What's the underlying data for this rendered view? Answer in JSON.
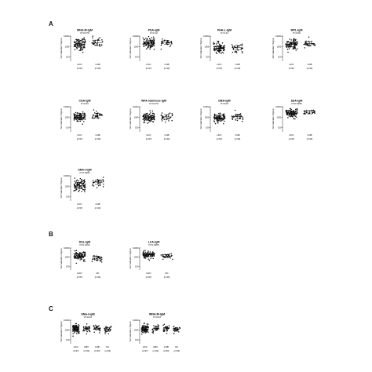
{
  "sections": [
    {
      "letter": "A"
    },
    {
      "letter": "B"
    },
    {
      "letter": "C"
    }
  ],
  "chart_data": [
    {
      "type": "scatter",
      "section": "A",
      "title": "MNA-M-IgM",
      "pvalue": "P=0.079",
      "ylabel": "Normalization Signal",
      "yscale": "log",
      "yticks": [
        100,
        1000,
        10000
      ],
      "ytick_labels": [
        "100",
        "1000",
        "10000"
      ],
      "groups": [
        {
          "name": "HCC",
          "n": "(n=97)",
          "median": 1800,
          "spread": 0.55,
          "count": 97
        },
        {
          "name": "CHB",
          "n": "(n=30)",
          "median": 2300,
          "spread": 0.45,
          "count": 30
        }
      ]
    },
    {
      "type": "scatter",
      "section": "A",
      "title": "PSA-IgM",
      "pvalue": "P=0.12",
      "ylabel": "Normalization Signal",
      "yscale": "log",
      "yticks": [
        100,
        1000,
        10000
      ],
      "ytick_labels": [
        "100",
        "1000",
        "10000"
      ],
      "groups": [
        {
          "name": "HCC",
          "n": "(n=97)",
          "median": 2200,
          "spread": 0.45,
          "count": 97
        },
        {
          "name": "CHB",
          "n": "(n=30)",
          "median": 2600,
          "spread": 0.35,
          "count": 30
        }
      ]
    },
    {
      "type": "scatter",
      "section": "A",
      "title": "PHA-L-IgM",
      "pvalue": "P=0.13",
      "ylabel": "Normalization Signal",
      "yscale": "log",
      "yticks": [
        100,
        1000,
        10000
      ],
      "ytick_labels": [
        "100",
        "1000",
        "10000"
      ],
      "groups": [
        {
          "name": "HCC",
          "n": "(n=97)",
          "median": 700,
          "spread": 0.45,
          "count": 97
        },
        {
          "name": "CHB",
          "n": "(n=30)",
          "median": 800,
          "spread": 0.4,
          "count": 30
        }
      ]
    },
    {
      "type": "scatter",
      "section": "A",
      "title": "MPL-IgM",
      "pvalue": "P=0.09",
      "ylabel": "Normalization Signal",
      "yscale": "log",
      "yticks": [
        100,
        1000,
        10000
      ],
      "ytick_labels": [
        "100",
        "1000",
        "10000"
      ],
      "groups": [
        {
          "name": "HCC",
          "n": "(n=97)",
          "median": 1600,
          "spread": 0.4,
          "count": 97
        },
        {
          "name": "CHB",
          "n": "(n=30)",
          "median": 2000,
          "spread": 0.35,
          "count": 30
        }
      ]
    },
    {
      "type": "scatter",
      "section": "A",
      "title": "CSA-IgM",
      "pvalue": "P=0.03",
      "ylabel": "Normalization Signal",
      "yscale": "log",
      "yticks": [
        100,
        1000,
        10000
      ],
      "ytick_labels": [
        "100",
        "1000",
        "10000"
      ],
      "groups": [
        {
          "name": "HCC",
          "n": "(n=97)",
          "median": 1000,
          "spread": 0.45,
          "count": 97
        },
        {
          "name": "CHB",
          "n": "(n=30)",
          "median": 1500,
          "spread": 0.4,
          "count": 30
        }
      ]
    },
    {
      "type": "scatter",
      "section": "A",
      "title": "WFA mannose-IgM",
      "pvalue": "P=0.070",
      "ylabel": "Normalization Signal",
      "yscale": "log",
      "yticks": [
        100,
        1000,
        10000
      ],
      "ytick_labels": [
        "100",
        "1000",
        "10000"
      ],
      "groups": [
        {
          "name": "HCC",
          "n": "(n=97)",
          "median": 900,
          "spread": 0.45,
          "count": 97
        },
        {
          "name": "CHB",
          "n": "(n=30)",
          "median": 1100,
          "spread": 0.4,
          "count": 30
        }
      ]
    },
    {
      "type": "scatter",
      "section": "A",
      "title": "DBA-IgM",
      "pvalue": "P=0.03",
      "ylabel": "Normalization Signal",
      "yscale": "log",
      "yticks": [
        100,
        1000,
        10000
      ],
      "ytick_labels": [
        "100",
        "1000",
        "10000"
      ],
      "groups": [
        {
          "name": "HCC",
          "n": "(n=97)",
          "median": 800,
          "spread": 0.45,
          "count": 97
        },
        {
          "name": "CHB",
          "n": "(n=30)",
          "median": 1200,
          "spread": 0.4,
          "count": 30
        }
      ]
    },
    {
      "type": "scatter",
      "section": "A",
      "title": "SSA-IgM",
      "pvalue": "P=0.0408",
      "ylabel": "Normalization Signal",
      "yscale": "log",
      "yticks": [
        100,
        1000,
        10000
      ],
      "ytick_labels": [
        "100",
        "1000",
        "10000"
      ],
      "groups": [
        {
          "name": "HCC",
          "n": "(n=97)",
          "median": 2600,
          "spread": 0.35,
          "count": 97
        },
        {
          "name": "CHB",
          "n": "(n=30)",
          "median": 3200,
          "spread": 0.3,
          "count": 30
        }
      ]
    },
    {
      "type": "scatter",
      "section": "A",
      "title": "SNA-I-IgM",
      "pvalue": "P=0.0006",
      "ylabel": "Normalization Signal",
      "yscale": "log",
      "yticks": [
        100,
        1000,
        10000
      ],
      "ytick_labels": [
        "100",
        "1000",
        "10000"
      ],
      "groups": [
        {
          "name": "HCC",
          "n": "(n=97)",
          "median": 1200,
          "spread": 0.55,
          "count": 97
        },
        {
          "name": "CHB",
          "n": "(n=30)",
          "median": 2600,
          "spread": 0.4,
          "count": 30
        }
      ]
    },
    {
      "type": "scatter",
      "section": "B",
      "title": "DSL-IgM",
      "pvalue": "P=0.0103",
      "ylabel": "Normalization Signal",
      "yscale": "log",
      "yticks": [
        100,
        1000,
        10000
      ],
      "ytick_labels": [
        "100",
        "1000",
        "10000"
      ],
      "groups": [
        {
          "name": "HCC",
          "n": "(n=97)",
          "median": 1400,
          "spread": 0.45,
          "count": 97
        },
        {
          "name": "NC",
          "n": "(n=30)",
          "median": 800,
          "spread": 0.35,
          "count": 30
        }
      ]
    },
    {
      "type": "scatter",
      "section": "B",
      "title": "LCA-IgM",
      "pvalue": "P=0.0465",
      "ylabel": "Normalization Signal",
      "yscale": "log",
      "yticks": [
        100,
        1000,
        10000
      ],
      "ytick_labels": [
        "100",
        "1000",
        "10000"
      ],
      "groups": [
        {
          "name": "HCC",
          "n": "(n=97)",
          "median": 1800,
          "spread": 0.35,
          "count": 97
        },
        {
          "name": "NC",
          "n": "(n=30)",
          "median": 1300,
          "spread": 0.3,
          "count": 30
        }
      ]
    },
    {
      "type": "scatter",
      "section": "C",
      "title": "SNA-I-IgM",
      "pvalue": "P=0.04",
      "ylabel": "Normalization Signal",
      "yscale": "log",
      "yticks": [
        100,
        1000,
        10000
      ],
      "ytick_labels": [
        "100",
        "1000",
        "10000"
      ],
      "groups": [
        {
          "name": "HCC",
          "n": "(n=97)",
          "median": 1300,
          "spread": 0.4,
          "count": 97
        },
        {
          "name": "HBC",
          "n": "(n=30)",
          "median": 1500,
          "spread": 0.35,
          "count": 30
        },
        {
          "name": "CHB",
          "n": "(n=30)",
          "median": 1600,
          "spread": 0.35,
          "count": 30
        },
        {
          "name": "NC",
          "n": "(n=30)",
          "median": 1200,
          "spread": 0.35,
          "count": 30
        }
      ]
    },
    {
      "type": "scatter",
      "section": "C",
      "title": "WNA-M-IgM",
      "pvalue": "P=0.04",
      "ylabel": "Normalization Signal",
      "yscale": "log",
      "yticks": [
        100,
        1000,
        10000
      ],
      "ytick_labels": [
        "100",
        "1000",
        "10000"
      ],
      "groups": [
        {
          "name": "HCC",
          "n": "(n=97)",
          "median": 1300,
          "spread": 0.4,
          "count": 97
        },
        {
          "name": "HBC",
          "n": "(n=30)",
          "median": 1400,
          "spread": 0.35,
          "count": 30
        },
        {
          "name": "CHB",
          "n": "(n=30)",
          "median": 1500,
          "spread": 0.35,
          "count": 30
        },
        {
          "name": "NC",
          "n": "(n=30)",
          "median": 1200,
          "spread": 0.35,
          "count": 30
        }
      ]
    }
  ]
}
